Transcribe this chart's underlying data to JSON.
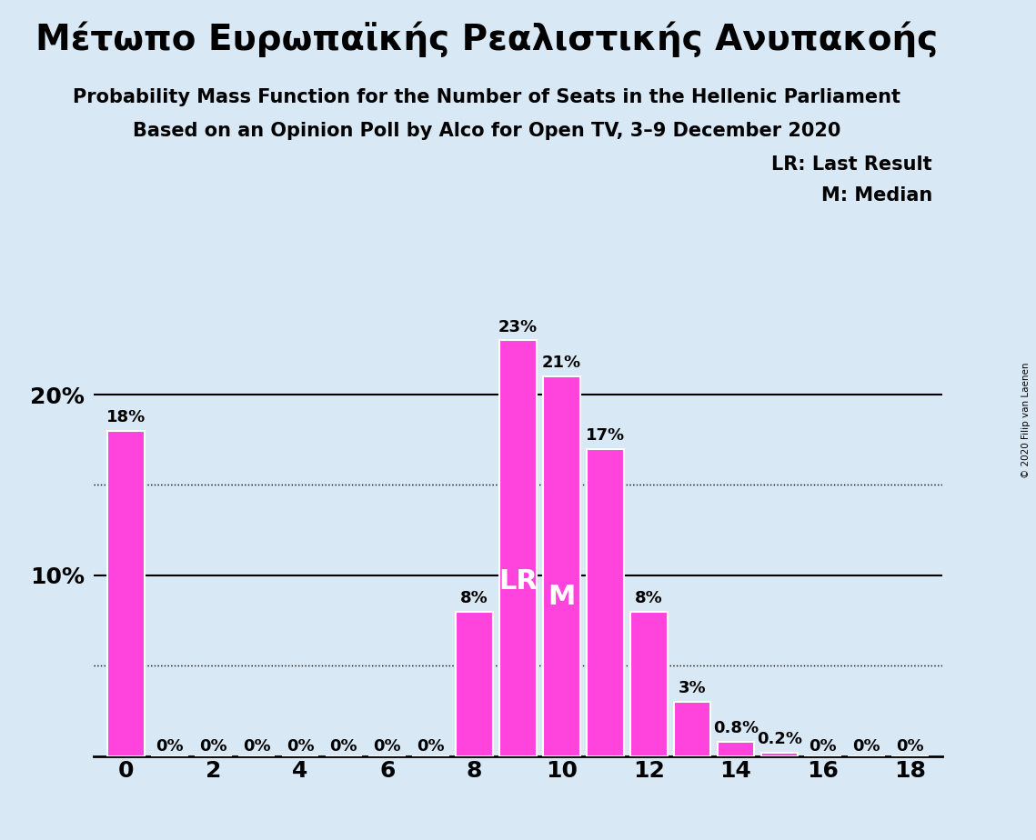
{
  "title_greek": "Μέτωπο Ευρωπαϊκής Ρεαλιστικής Ανυπακοής",
  "subtitle1": "Probability Mass Function for the Number of Seats in the Hellenic Parliament",
  "subtitle2": "Based on an Opinion Poll by Alco for Open TV, 3–9 December 2020",
  "copyright": "© 2020 Filip van Laenen",
  "background_color": "#d9e8f5",
  "bar_color": "#ff44dd",
  "bar_edge_color": "#ffffff",
  "seats": [
    0,
    1,
    2,
    3,
    4,
    5,
    6,
    7,
    8,
    9,
    10,
    11,
    12,
    13,
    14,
    15,
    16,
    17,
    18
  ],
  "probabilities": [
    0.18,
    0.0,
    0.0,
    0.0,
    0.0,
    0.0,
    0.0,
    0.0,
    0.08,
    0.23,
    0.21,
    0.17,
    0.08,
    0.03,
    0.008,
    0.002,
    0.0,
    0.0,
    0.0
  ],
  "labels": [
    "18%",
    "0%",
    "0%",
    "0%",
    "0%",
    "0%",
    "0%",
    "0%",
    "8%",
    "23%",
    "21%",
    "17%",
    "8%",
    "3%",
    "0.8%",
    "0.2%",
    "0%",
    "0%",
    "0%"
  ],
  "LR_seat": 9,
  "median_seat": 10,
  "xticks": [
    0,
    2,
    4,
    6,
    8,
    10,
    12,
    14,
    16,
    18
  ],
  "ymax": 0.265,
  "legend_LR": "LR: Last Result",
  "legend_M": "M: Median",
  "label_fontsize": 13,
  "title_fontsize": 28,
  "subtitle_fontsize": 15,
  "axis_fontsize": 18,
  "legend_fontsize": 15
}
